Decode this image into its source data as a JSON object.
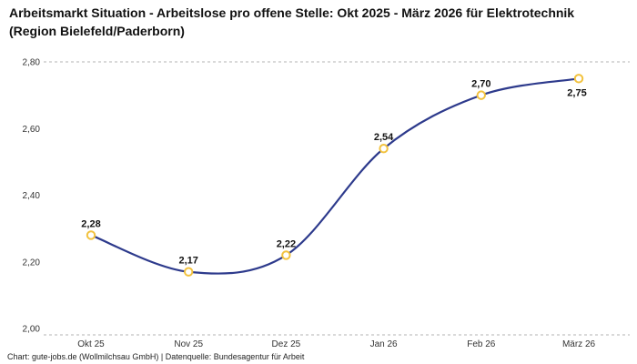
{
  "title": "Arbeitsmarkt Situation - Arbeitslose pro offene Stelle: Okt 2025 - März 2026 für Elektrotechnik (Region Bielefeld/Paderborn)",
  "footer": "Chart: gute-jobs.de (Wollmilchsau GmbH) | Datenquelle: Bundesagentur für Arbeit",
  "colors": {
    "line": "#2d3a8c",
    "marker_stroke": "#f2c23e",
    "marker_fill": "#ffffff",
    "grid": "#b3b3b3",
    "axis_text": "#333333",
    "label_text": "#111111"
  },
  "chart_data": {
    "type": "line",
    "title": "Arbeitsmarkt Situation - Arbeitslose pro offene Stelle: Okt 2025 - März 2026 für Elektrotechnik (Region Bielefeld/Paderborn)",
    "categories": [
      "Okt 25",
      "Nov 25",
      "Dez 25",
      "Jan 26",
      "Feb 26",
      "März 26"
    ],
    "values": [
      2.28,
      2.17,
      2.22,
      2.54,
      2.7,
      2.75
    ],
    "value_labels": [
      "2,28",
      "2,17",
      "2,22",
      "2,54",
      "2,70",
      "2,75"
    ],
    "y_ticks": [
      2.0,
      2.2,
      2.4,
      2.6,
      2.8
    ],
    "y_tick_labels": [
      "2,00",
      "2,20",
      "2,40",
      "2,60",
      "2,80"
    ],
    "ylim": [
      2.0,
      2.8
    ],
    "xlabel": "",
    "ylabel": "",
    "legend_position": "none",
    "grid": "dashed line at top (2,80) and dashed baseline at bottom",
    "source_caption": "Chart: gute-jobs.de (Wollmilchsau GmbH) | Datenquelle: Bundesagentur für Arbeit"
  }
}
